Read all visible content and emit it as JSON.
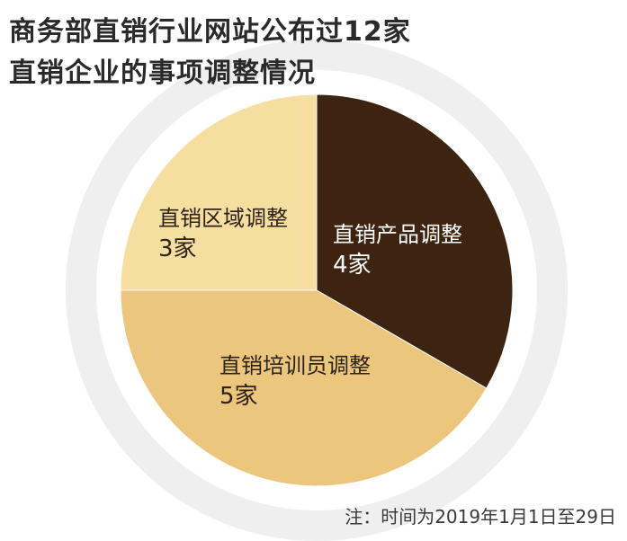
{
  "title_line1": "商务部直销行业网站公布过12家",
  "title_line2": "直销企业的事项调整情况",
  "chart_data": {
    "type": "pie",
    "slices": [
      {
        "label": "直销产品调整",
        "count_text": "4家",
        "value": 4,
        "color": "#3d2410"
      },
      {
        "label": "直销培训员调整",
        "count_text": "5家",
        "value": 5,
        "color": "#ecc67d"
      },
      {
        "label": "直销区域调整",
        "count_text": "3家",
        "value": 3,
        "color": "#f6dea0"
      }
    ]
  },
  "footnote": "注：时间为2019年1月1日至29日",
  "colors": {
    "ring": "#efefef",
    "product": "#3d2410",
    "trainer": "#ecc67d",
    "region": "#f6dea0"
  }
}
